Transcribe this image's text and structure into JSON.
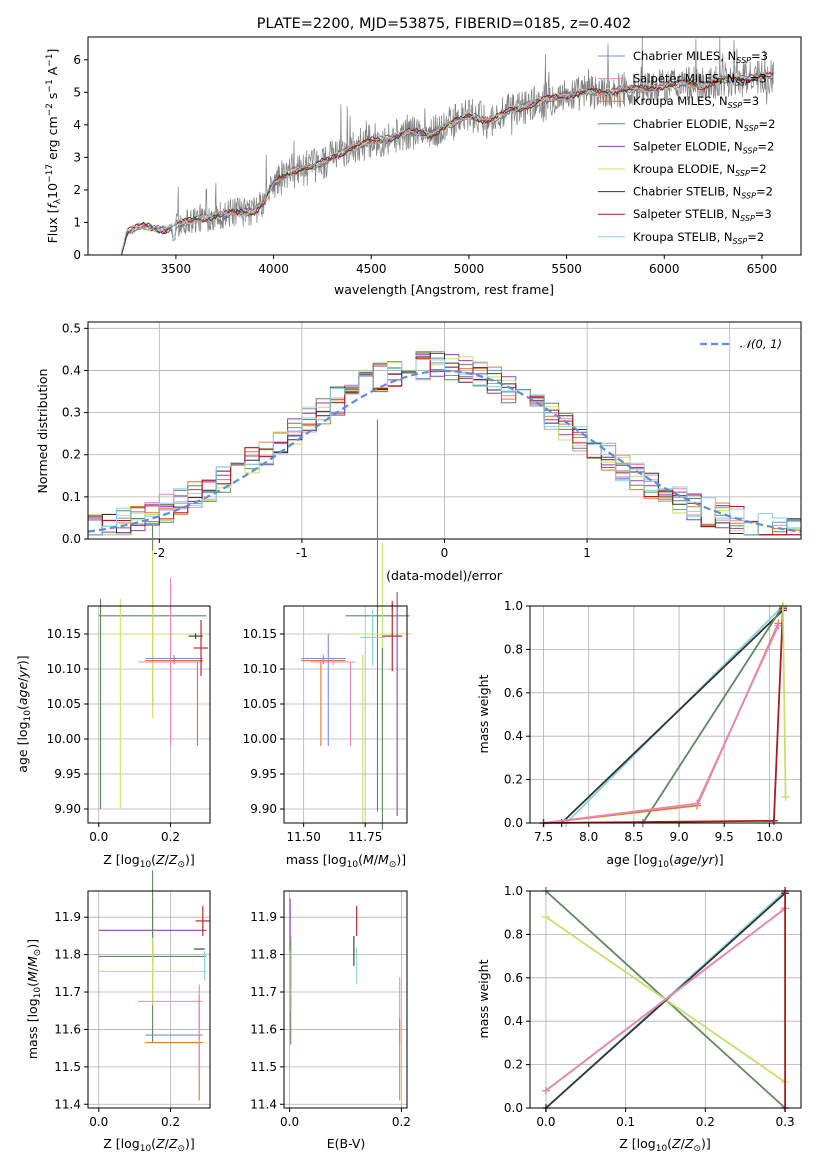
{
  "figure_title": "PLATE=2200, MJD=53875, FIBERID=0185, z=0.402",
  "chart_data": [
    {
      "id": "spectrum",
      "type": "line",
      "title": "PLATE=2200, MJD=53875, FIBERID=0185, z=0.402",
      "xlabel": "wavelength [Angstrom, rest frame]",
      "ylabel": "Flux [$f_\\lambda 10^{-17}$ erg cm$^{-2}$ s$^{-1}$ A$^{-1}$]",
      "ylabel_parts": [
        "Flux [",
        "f",
        "λ",
        "10",
        "−17",
        " erg cm",
        "−2",
        " s",
        "−1",
        " A",
        "−1",
        "]"
      ],
      "xlim": [
        3050,
        6700
      ],
      "ylim": [
        0,
        6.7
      ],
      "xticks": [
        3500,
        4000,
        4500,
        5000,
        5500,
        6000,
        6500
      ],
      "yticks": [
        0,
        1,
        2,
        3,
        4,
        5,
        6
      ],
      "grid": false,
      "legend_position": "top-right",
      "data_trend": {
        "x": [
          3220,
          3250,
          3300,
          3350,
          3400,
          3450,
          3500,
          3600,
          3700,
          3800,
          3900,
          3950,
          4000,
          4100,
          4200,
          4300,
          4400,
          4500,
          4600,
          4700,
          4800,
          4900,
          5000,
          5100,
          5200,
          5300,
          5400,
          5500,
          5600,
          5700,
          5800,
          5900,
          6000,
          6100,
          6200,
          6300,
          6400,
          6500,
          6550
        ],
        "y": [
          0.0,
          0.7,
          0.85,
          0.9,
          0.8,
          0.75,
          0.95,
          1.1,
          1.2,
          1.3,
          1.35,
          1.6,
          2.2,
          2.6,
          2.7,
          3.0,
          3.3,
          3.5,
          3.6,
          3.8,
          3.7,
          4.0,
          4.3,
          4.1,
          4.4,
          4.6,
          4.8,
          4.9,
          5.0,
          5.0,
          5.1,
          5.1,
          5.2,
          5.3,
          5.2,
          5.4,
          5.4,
          5.5,
          5.5
        ]
      },
      "legend": [
        {
          "imf": "Chabrier",
          "lib": "MILES",
          "n": "3",
          "color": "#7b8fd6"
        },
        {
          "imf": "Salpeter",
          "lib": "MILES",
          "n": "3",
          "color": "#e789b8"
        },
        {
          "imf": "Kroupa",
          "lib": "MILES",
          "n": "3",
          "color": "#e07a2c"
        },
        {
          "imf": "Chabrier",
          "lib": "ELODIE",
          "n": "2",
          "color": "#5f8a5f"
        },
        {
          "imf": "Salpeter",
          "lib": "ELODIE",
          "n": "2",
          "color": "#9a3fb0"
        },
        {
          "imf": "Kroupa",
          "lib": "ELODIE",
          "n": "2",
          "color": "#c5e070"
        },
        {
          "imf": "Chabrier",
          "lib": "STELIB",
          "n": "2",
          "color": "#333333"
        },
        {
          "imf": "Salpeter",
          "lib": "STELIB",
          "n": "3",
          "color": "#b51a1a"
        },
        {
          "imf": "Kroupa",
          "lib": "STELIB",
          "n": "2",
          "color": "#86d3e0"
        }
      ],
      "legend_sub": "SSP",
      "legend_n_prefix": "N"
    },
    {
      "id": "residuals",
      "type": "line",
      "xlabel": "(data-model)/error",
      "ylabel": "Normed distribution",
      "xlim": [
        -2.5,
        2.5
      ],
      "ylim": [
        0,
        0.515
      ],
      "xticks": [
        -2,
        -1,
        0,
        1,
        2
      ],
      "yticks": [
        0.0,
        0.1,
        0.2,
        0.3,
        0.4,
        0.5
      ],
      "grid": true,
      "legend_position": "top-right",
      "legend": "𝒩(0, 1)",
      "gaussian": {
        "mean": 0,
        "sigma": 1,
        "color": "#5b8fd6"
      },
      "bin_width": 0.1
    },
    {
      "id": "age-vs-Z",
      "type": "scatter",
      "xlabel": "Z [log10(Z/Z⊙)]",
      "ylabel": "age [log10(age/yr)]",
      "xlim": [
        -0.03,
        0.31
      ],
      "ylim": [
        9.88,
        10.19
      ],
      "xticks": [
        0.0,
        0.2
      ],
      "yticks": [
        9.9,
        9.95,
        10.0,
        10.05,
        10.1,
        10.15
      ],
      "ytick_labels": [
        "9.90",
        "9.95",
        "10.00",
        "10.05",
        "10.10",
        "10.15"
      ],
      "xtick_labels": [
        "0.0",
        "0.2"
      ],
      "grid": true
    },
    {
      "id": "age-vs-mass",
      "type": "scatter",
      "xlabel": "mass [log10(M/M⊙)]",
      "xlim": [
        11.42,
        11.92
      ],
      "ylim": [
        9.88,
        10.19
      ],
      "xticks": [
        11.5,
        11.75
      ],
      "xtick_labels": [
        "11.50",
        "11.75"
      ],
      "yticks": [
        9.9,
        9.95,
        10.0,
        10.05,
        10.1,
        10.15
      ],
      "ytick_labels": [
        "9.90",
        "9.95",
        "10.00",
        "10.05",
        "10.10",
        "10.15"
      ],
      "grid": true
    },
    {
      "id": "massweight-vs-age",
      "type": "line",
      "xlabel": "age [log10(age/yr)]",
      "ylabel": "mass weight",
      "xlim": [
        7.35,
        10.35
      ],
      "ylim": [
        0,
        1
      ],
      "xticks": [
        7.5,
        8.0,
        8.5,
        9.0,
        9.5,
        10.0
      ],
      "xtick_labels": [
        "7.5",
        "8.0",
        "8.5",
        "9.0",
        "9.5",
        "10.0"
      ],
      "yticks": [
        0,
        0.2,
        0.4,
        0.6,
        0.8,
        1.0
      ],
      "ytick_labels": [
        "0.0",
        "0.2",
        "0.4",
        "0.6",
        "0.8",
        "1.0"
      ],
      "grid": true,
      "series": [
        {
          "color": "#86d3e0",
          "x": [
            7.75,
            10.15
          ],
          "y": [
            0.0,
            1.0
          ]
        },
        {
          "color": "#333333",
          "x": [
            7.7,
            10.15
          ],
          "y": [
            0.0,
            0.98
          ]
        },
        {
          "color": "#5f8a5f",
          "x": [
            8.6,
            10.15
          ],
          "y": [
            0.0,
            1.0
          ]
        },
        {
          "color": "#e07a2c",
          "x": [
            7.5,
            9.2,
            10.1
          ],
          "y": [
            0.0,
            0.08,
            0.92
          ]
        },
        {
          "color": "#e789b8",
          "x": [
            7.5,
            9.2,
            10.1
          ],
          "y": [
            0.0,
            0.09,
            0.91
          ]
        },
        {
          "color": "#b51a1a",
          "x": [
            7.5,
            10.05,
            10.15
          ],
          "y": [
            0.0,
            0.01,
            0.99
          ]
        },
        {
          "color": "#c5e070",
          "x": [
            10.15,
            10.18
          ],
          "y": [
            1.0,
            0.12
          ]
        }
      ]
    },
    {
      "id": "mass-vs-Z",
      "type": "scatter",
      "xlabel": "Z [log10(Z/Z⊙)]",
      "ylabel": "mass [log10(M/M⊙)]",
      "xlim": [
        -0.03,
        0.31
      ],
      "ylim": [
        11.39,
        11.97
      ],
      "xticks": [
        0.0,
        0.2
      ],
      "xtick_labels": [
        "0.0",
        "0.2"
      ],
      "yticks": [
        11.4,
        11.5,
        11.6,
        11.7,
        11.8,
        11.9
      ],
      "ytick_labels": [
        "11.4",
        "11.5",
        "11.6",
        "11.7",
        "11.8",
        "11.9"
      ],
      "grid": true
    },
    {
      "id": "mass-vs-EBV",
      "type": "scatter",
      "xlabel": "E(B-V)",
      "xlim": [
        -0.01,
        0.21
      ],
      "ylim": [
        11.39,
        11.97
      ],
      "xticks": [
        0.0,
        0.2
      ],
      "xtick_labels": [
        "0.0",
        "0.2"
      ],
      "yticks": [
        11.4,
        11.5,
        11.6,
        11.7,
        11.8,
        11.9
      ],
      "ytick_labels": [
        "11.4",
        "11.5",
        "11.6",
        "11.7",
        "11.8",
        "11.9"
      ],
      "grid": true
    },
    {
      "id": "massweight-vs-Z",
      "type": "line",
      "xlabel": "Z [log10(Z/Z⊙)]",
      "ylabel": "mass weight",
      "xlim": [
        -0.02,
        0.32
      ],
      "ylim": [
        0,
        1
      ],
      "xticks": [
        0.0,
        0.1,
        0.2,
        0.3
      ],
      "xtick_labels": [
        "0.0",
        "0.1",
        "0.2",
        "0.3"
      ],
      "yticks": [
        0,
        0.2,
        0.4,
        0.6,
        0.8,
        1.0
      ],
      "ytick_labels": [
        "0.0",
        "0.2",
        "0.4",
        "0.6",
        "0.8",
        "1.0"
      ],
      "grid": true,
      "series": [
        {
          "color": "#5f8a5f",
          "x": [
            0.0,
            0.3
          ],
          "y": [
            1.0,
            0.0
          ]
        },
        {
          "color": "#c5e070",
          "x": [
            0.0,
            0.3
          ],
          "y": [
            0.88,
            0.12
          ]
        },
        {
          "color": "#86d3e0",
          "x": [
            0.0,
            0.3
          ],
          "y": [
            0.0,
            1.0
          ]
        },
        {
          "color": "#333333",
          "x": [
            0.0,
            0.3
          ],
          "y": [
            0.0,
            0.99
          ]
        },
        {
          "color": "#e07a2c",
          "x": [
            0.0,
            0.3
          ],
          "y": [
            0.08,
            0.92
          ]
        },
        {
          "color": "#e789b8",
          "x": [
            0.0,
            0.3
          ],
          "y": [
            0.08,
            0.92
          ]
        },
        {
          "color": "#b51a1a",
          "x": [
            0.3,
            0.3
          ],
          "y": [
            0.0,
            1.0
          ]
        }
      ]
    }
  ]
}
